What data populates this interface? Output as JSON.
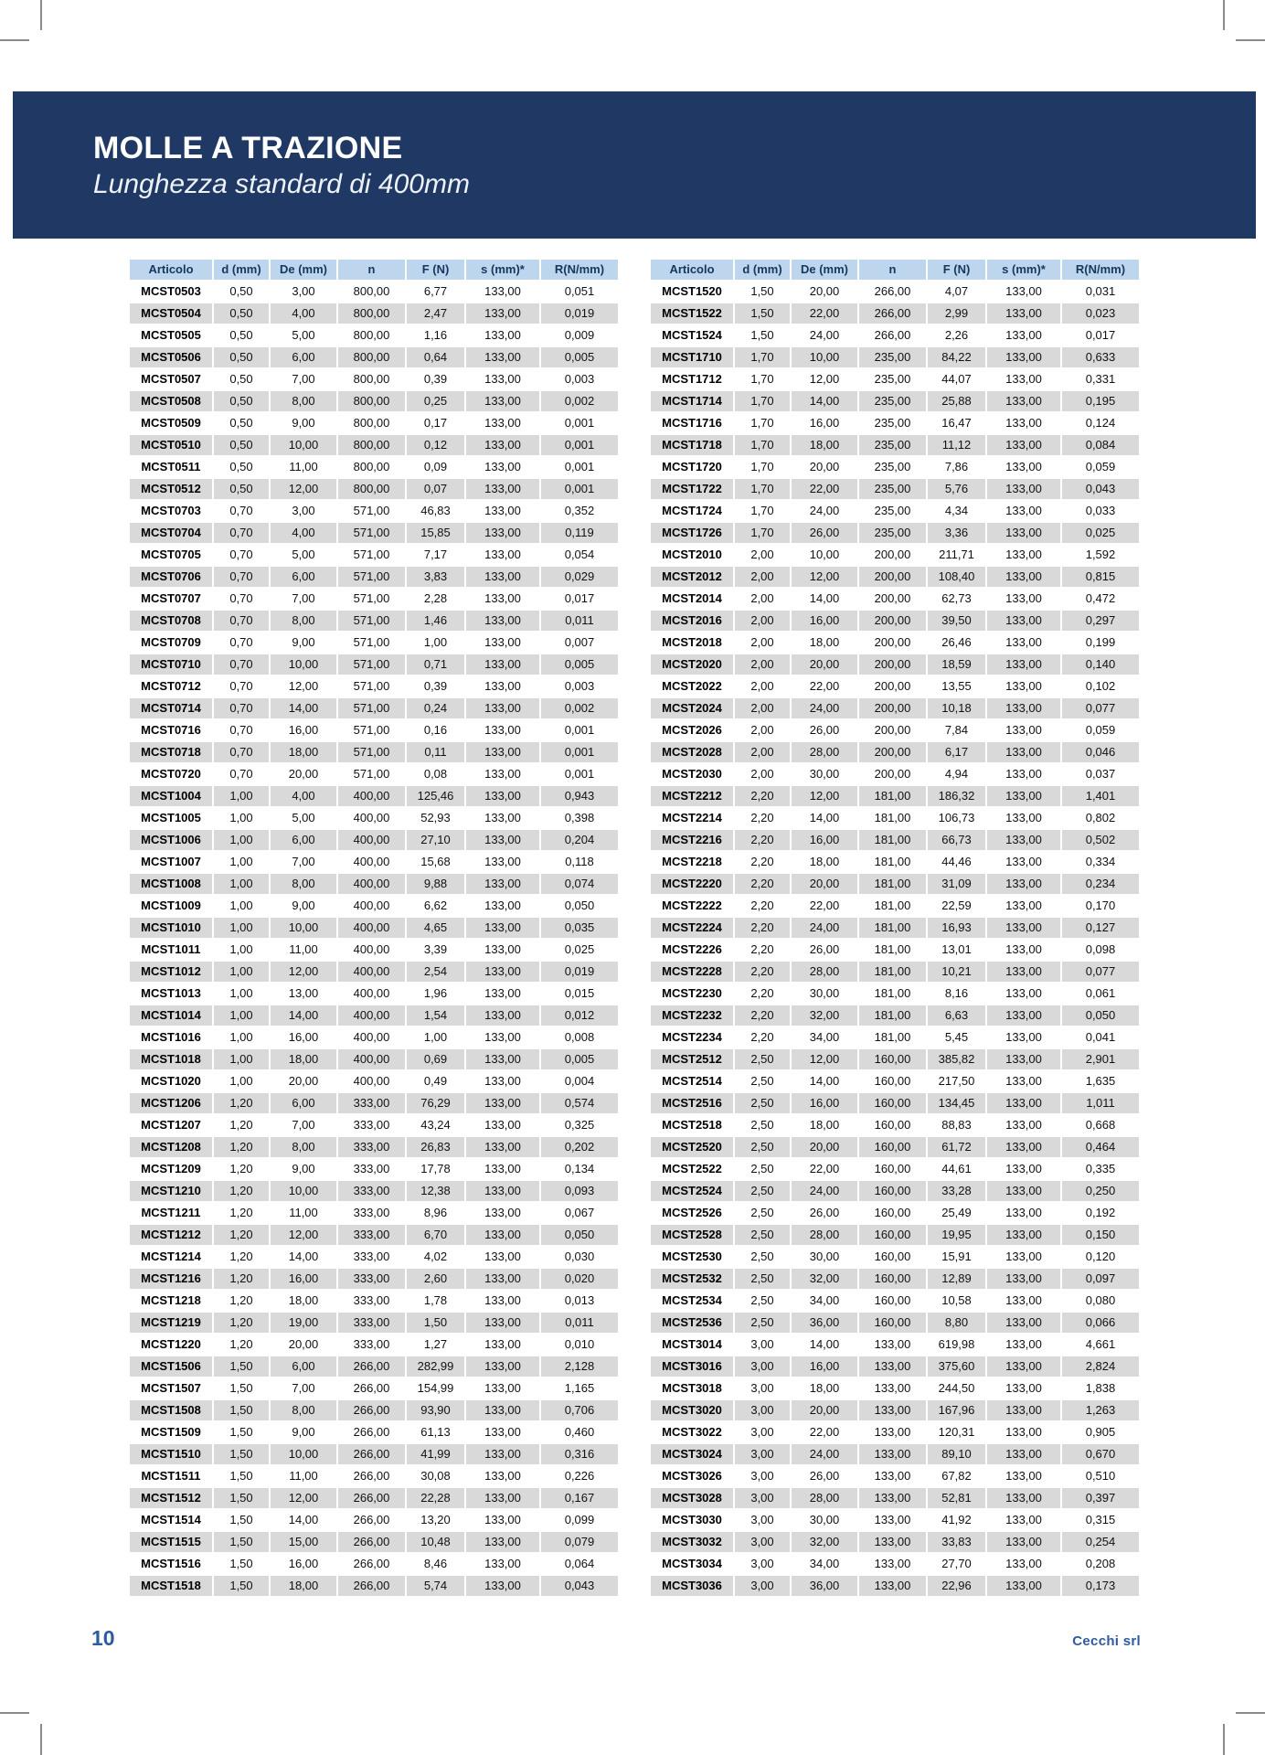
{
  "page": {
    "title": "MOLLE A TRAZIONE",
    "subtitle": "Lunghezza standard di 400mm",
    "page_number": "10",
    "company": "Cecchi srl"
  },
  "colors": {
    "banner": "#1F3864",
    "header_row_bg": "#BDD6EE",
    "header_text": "#17365D",
    "row_stripe": "#D9D9D9",
    "footer_text": "#2E5AA0"
  },
  "table": {
    "columns": [
      "Articolo",
      "d (mm)",
      "De (mm)",
      "n",
      "F (N)",
      "s (mm)*",
      "R(N/mm)"
    ],
    "left_rows": [
      [
        "MCST0503",
        "0,50",
        "3,00",
        "800,00",
        "6,77",
        "133,00",
        "0,051"
      ],
      [
        "MCST0504",
        "0,50",
        "4,00",
        "800,00",
        "2,47",
        "133,00",
        "0,019"
      ],
      [
        "MCST0505",
        "0,50",
        "5,00",
        "800,00",
        "1,16",
        "133,00",
        "0,009"
      ],
      [
        "MCST0506",
        "0,50",
        "6,00",
        "800,00",
        "0,64",
        "133,00",
        "0,005"
      ],
      [
        "MCST0507",
        "0,50",
        "7,00",
        "800,00",
        "0,39",
        "133,00",
        "0,003"
      ],
      [
        "MCST0508",
        "0,50",
        "8,00",
        "800,00",
        "0,25",
        "133,00",
        "0,002"
      ],
      [
        "MCST0509",
        "0,50",
        "9,00",
        "800,00",
        "0,17",
        "133,00",
        "0,001"
      ],
      [
        "MCST0510",
        "0,50",
        "10,00",
        "800,00",
        "0,12",
        "133,00",
        "0,001"
      ],
      [
        "MCST0511",
        "0,50",
        "11,00",
        "800,00",
        "0,09",
        "133,00",
        "0,001"
      ],
      [
        "MCST0512",
        "0,50",
        "12,00",
        "800,00",
        "0,07",
        "133,00",
        "0,001"
      ],
      [
        "MCST0703",
        "0,70",
        "3,00",
        "571,00",
        "46,83",
        "133,00",
        "0,352"
      ],
      [
        "MCST0704",
        "0,70",
        "4,00",
        "571,00",
        "15,85",
        "133,00",
        "0,119"
      ],
      [
        "MCST0705",
        "0,70",
        "5,00",
        "571,00",
        "7,17",
        "133,00",
        "0,054"
      ],
      [
        "MCST0706",
        "0,70",
        "6,00",
        "571,00",
        "3,83",
        "133,00",
        "0,029"
      ],
      [
        "MCST0707",
        "0,70",
        "7,00",
        "571,00",
        "2,28",
        "133,00",
        "0,017"
      ],
      [
        "MCST0708",
        "0,70",
        "8,00",
        "571,00",
        "1,46",
        "133,00",
        "0,011"
      ],
      [
        "MCST0709",
        "0,70",
        "9,00",
        "571,00",
        "1,00",
        "133,00",
        "0,007"
      ],
      [
        "MCST0710",
        "0,70",
        "10,00",
        "571,00",
        "0,71",
        "133,00",
        "0,005"
      ],
      [
        "MCST0712",
        "0,70",
        "12,00",
        "571,00",
        "0,39",
        "133,00",
        "0,003"
      ],
      [
        "MCST0714",
        "0,70",
        "14,00",
        "571,00",
        "0,24",
        "133,00",
        "0,002"
      ],
      [
        "MCST0716",
        "0,70",
        "16,00",
        "571,00",
        "0,16",
        "133,00",
        "0,001"
      ],
      [
        "MCST0718",
        "0,70",
        "18,00",
        "571,00",
        "0,11",
        "133,00",
        "0,001"
      ],
      [
        "MCST0720",
        "0,70",
        "20,00",
        "571,00",
        "0,08",
        "133,00",
        "0,001"
      ],
      [
        "MCST1004",
        "1,00",
        "4,00",
        "400,00",
        "125,46",
        "133,00",
        "0,943"
      ],
      [
        "MCST1005",
        "1,00",
        "5,00",
        "400,00",
        "52,93",
        "133,00",
        "0,398"
      ],
      [
        "MCST1006",
        "1,00",
        "6,00",
        "400,00",
        "27,10",
        "133,00",
        "0,204"
      ],
      [
        "MCST1007",
        "1,00",
        "7,00",
        "400,00",
        "15,68",
        "133,00",
        "0,118"
      ],
      [
        "MCST1008",
        "1,00",
        "8,00",
        "400,00",
        "9,88",
        "133,00",
        "0,074"
      ],
      [
        "MCST1009",
        "1,00",
        "9,00",
        "400,00",
        "6,62",
        "133,00",
        "0,050"
      ],
      [
        "MCST1010",
        "1,00",
        "10,00",
        "400,00",
        "4,65",
        "133,00",
        "0,035"
      ],
      [
        "MCST1011",
        "1,00",
        "11,00",
        "400,00",
        "3,39",
        "133,00",
        "0,025"
      ],
      [
        "MCST1012",
        "1,00",
        "12,00",
        "400,00",
        "2,54",
        "133,00",
        "0,019"
      ],
      [
        "MCST1013",
        "1,00",
        "13,00",
        "400,00",
        "1,96",
        "133,00",
        "0,015"
      ],
      [
        "MCST1014",
        "1,00",
        "14,00",
        "400,00",
        "1,54",
        "133,00",
        "0,012"
      ],
      [
        "MCST1016",
        "1,00",
        "16,00",
        "400,00",
        "1,00",
        "133,00",
        "0,008"
      ],
      [
        "MCST1018",
        "1,00",
        "18,00",
        "400,00",
        "0,69",
        "133,00",
        "0,005"
      ],
      [
        "MCST1020",
        "1,00",
        "20,00",
        "400,00",
        "0,49",
        "133,00",
        "0,004"
      ],
      [
        "MCST1206",
        "1,20",
        "6,00",
        "333,00",
        "76,29",
        "133,00",
        "0,574"
      ],
      [
        "MCST1207",
        "1,20",
        "7,00",
        "333,00",
        "43,24",
        "133,00",
        "0,325"
      ],
      [
        "MCST1208",
        "1,20",
        "8,00",
        "333,00",
        "26,83",
        "133,00",
        "0,202"
      ],
      [
        "MCST1209",
        "1,20",
        "9,00",
        "333,00",
        "17,78",
        "133,00",
        "0,134"
      ],
      [
        "MCST1210",
        "1,20",
        "10,00",
        "333,00",
        "12,38",
        "133,00",
        "0,093"
      ],
      [
        "MCST1211",
        "1,20",
        "11,00",
        "333,00",
        "8,96",
        "133,00",
        "0,067"
      ],
      [
        "MCST1212",
        "1,20",
        "12,00",
        "333,00",
        "6,70",
        "133,00",
        "0,050"
      ],
      [
        "MCST1214",
        "1,20",
        "14,00",
        "333,00",
        "4,02",
        "133,00",
        "0,030"
      ],
      [
        "MCST1216",
        "1,20",
        "16,00",
        "333,00",
        "2,60",
        "133,00",
        "0,020"
      ],
      [
        "MCST1218",
        "1,20",
        "18,00",
        "333,00",
        "1,78",
        "133,00",
        "0,013"
      ],
      [
        "MCST1219",
        "1,20",
        "19,00",
        "333,00",
        "1,50",
        "133,00",
        "0,011"
      ],
      [
        "MCST1220",
        "1,20",
        "20,00",
        "333,00",
        "1,27",
        "133,00",
        "0,010"
      ],
      [
        "MCST1506",
        "1,50",
        "6,00",
        "266,00",
        "282,99",
        "133,00",
        "2,128"
      ],
      [
        "MCST1507",
        "1,50",
        "7,00",
        "266,00",
        "154,99",
        "133,00",
        "1,165"
      ],
      [
        "MCST1508",
        "1,50",
        "8,00",
        "266,00",
        "93,90",
        "133,00",
        "0,706"
      ],
      [
        "MCST1509",
        "1,50",
        "9,00",
        "266,00",
        "61,13",
        "133,00",
        "0,460"
      ],
      [
        "MCST1510",
        "1,50",
        "10,00",
        "266,00",
        "41,99",
        "133,00",
        "0,316"
      ],
      [
        "MCST1511",
        "1,50",
        "11,00",
        "266,00",
        "30,08",
        "133,00",
        "0,226"
      ],
      [
        "MCST1512",
        "1,50",
        "12,00",
        "266,00",
        "22,28",
        "133,00",
        "0,167"
      ],
      [
        "MCST1514",
        "1,50",
        "14,00",
        "266,00",
        "13,20",
        "133,00",
        "0,099"
      ],
      [
        "MCST1515",
        "1,50",
        "15,00",
        "266,00",
        "10,48",
        "133,00",
        "0,079"
      ],
      [
        "MCST1516",
        "1,50",
        "16,00",
        "266,00",
        "8,46",
        "133,00",
        "0,064"
      ],
      [
        "MCST1518",
        "1,50",
        "18,00",
        "266,00",
        "5,74",
        "133,00",
        "0,043"
      ]
    ],
    "right_rows": [
      [
        "MCST1520",
        "1,50",
        "20,00",
        "266,00",
        "4,07",
        "133,00",
        "0,031"
      ],
      [
        "MCST1522",
        "1,50",
        "22,00",
        "266,00",
        "2,99",
        "133,00",
        "0,023"
      ],
      [
        "MCST1524",
        "1,50",
        "24,00",
        "266,00",
        "2,26",
        "133,00",
        "0,017"
      ],
      [
        "MCST1710",
        "1,70",
        "10,00",
        "235,00",
        "84,22",
        "133,00",
        "0,633"
      ],
      [
        "MCST1712",
        "1,70",
        "12,00",
        "235,00",
        "44,07",
        "133,00",
        "0,331"
      ],
      [
        "MCST1714",
        "1,70",
        "14,00",
        "235,00",
        "25,88",
        "133,00",
        "0,195"
      ],
      [
        "MCST1716",
        "1,70",
        "16,00",
        "235,00",
        "16,47",
        "133,00",
        "0,124"
      ],
      [
        "MCST1718",
        "1,70",
        "18,00",
        "235,00",
        "11,12",
        "133,00",
        "0,084"
      ],
      [
        "MCST1720",
        "1,70",
        "20,00",
        "235,00",
        "7,86",
        "133,00",
        "0,059"
      ],
      [
        "MCST1722",
        "1,70",
        "22,00",
        "235,00",
        "5,76",
        "133,00",
        "0,043"
      ],
      [
        "MCST1724",
        "1,70",
        "24,00",
        "235,00",
        "4,34",
        "133,00",
        "0,033"
      ],
      [
        "MCST1726",
        "1,70",
        "26,00",
        "235,00",
        "3,36",
        "133,00",
        "0,025"
      ],
      [
        "MCST2010",
        "2,00",
        "10,00",
        "200,00",
        "211,71",
        "133,00",
        "1,592"
      ],
      [
        "MCST2012",
        "2,00",
        "12,00",
        "200,00",
        "108,40",
        "133,00",
        "0,815"
      ],
      [
        "MCST2014",
        "2,00",
        "14,00",
        "200,00",
        "62,73",
        "133,00",
        "0,472"
      ],
      [
        "MCST2016",
        "2,00",
        "16,00",
        "200,00",
        "39,50",
        "133,00",
        "0,297"
      ],
      [
        "MCST2018",
        "2,00",
        "18,00",
        "200,00",
        "26,46",
        "133,00",
        "0,199"
      ],
      [
        "MCST2020",
        "2,00",
        "20,00",
        "200,00",
        "18,59",
        "133,00",
        "0,140"
      ],
      [
        "MCST2022",
        "2,00",
        "22,00",
        "200,00",
        "13,55",
        "133,00",
        "0,102"
      ],
      [
        "MCST2024",
        "2,00",
        "24,00",
        "200,00",
        "10,18",
        "133,00",
        "0,077"
      ],
      [
        "MCST2026",
        "2,00",
        "26,00",
        "200,00",
        "7,84",
        "133,00",
        "0,059"
      ],
      [
        "MCST2028",
        "2,00",
        "28,00",
        "200,00",
        "6,17",
        "133,00",
        "0,046"
      ],
      [
        "MCST2030",
        "2,00",
        "30,00",
        "200,00",
        "4,94",
        "133,00",
        "0,037"
      ],
      [
        "MCST2212",
        "2,20",
        "12,00",
        "181,00",
        "186,32",
        "133,00",
        "1,401"
      ],
      [
        "MCST2214",
        "2,20",
        "14,00",
        "181,00",
        "106,73",
        "133,00",
        "0,802"
      ],
      [
        "MCST2216",
        "2,20",
        "16,00",
        "181,00",
        "66,73",
        "133,00",
        "0,502"
      ],
      [
        "MCST2218",
        "2,20",
        "18,00",
        "181,00",
        "44,46",
        "133,00",
        "0,334"
      ],
      [
        "MCST2220",
        "2,20",
        "20,00",
        "181,00",
        "31,09",
        "133,00",
        "0,234"
      ],
      [
        "MCST2222",
        "2,20",
        "22,00",
        "181,00",
        "22,59",
        "133,00",
        "0,170"
      ],
      [
        "MCST2224",
        "2,20",
        "24,00",
        "181,00",
        "16,93",
        "133,00",
        "0,127"
      ],
      [
        "MCST2226",
        "2,20",
        "26,00",
        "181,00",
        "13,01",
        "133,00",
        "0,098"
      ],
      [
        "MCST2228",
        "2,20",
        "28,00",
        "181,00",
        "10,21",
        "133,00",
        "0,077"
      ],
      [
        "MCST2230",
        "2,20",
        "30,00",
        "181,00",
        "8,16",
        "133,00",
        "0,061"
      ],
      [
        "MCST2232",
        "2,20",
        "32,00",
        "181,00",
        "6,63",
        "133,00",
        "0,050"
      ],
      [
        "MCST2234",
        "2,20",
        "34,00",
        "181,00",
        "5,45",
        "133,00",
        "0,041"
      ],
      [
        "MCST2512",
        "2,50",
        "12,00",
        "160,00",
        "385,82",
        "133,00",
        "2,901"
      ],
      [
        "MCST2514",
        "2,50",
        "14,00",
        "160,00",
        "217,50",
        "133,00",
        "1,635"
      ],
      [
        "MCST2516",
        "2,50",
        "16,00",
        "160,00",
        "134,45",
        "133,00",
        "1,011"
      ],
      [
        "MCST2518",
        "2,50",
        "18,00",
        "160,00",
        "88,83",
        "133,00",
        "0,668"
      ],
      [
        "MCST2520",
        "2,50",
        "20,00",
        "160,00",
        "61,72",
        "133,00",
        "0,464"
      ],
      [
        "MCST2522",
        "2,50",
        "22,00",
        "160,00",
        "44,61",
        "133,00",
        "0,335"
      ],
      [
        "MCST2524",
        "2,50",
        "24,00",
        "160,00",
        "33,28",
        "133,00",
        "0,250"
      ],
      [
        "MCST2526",
        "2,50",
        "26,00",
        "160,00",
        "25,49",
        "133,00",
        "0,192"
      ],
      [
        "MCST2528",
        "2,50",
        "28,00",
        "160,00",
        "19,95",
        "133,00",
        "0,150"
      ],
      [
        "MCST2530",
        "2,50",
        "30,00",
        "160,00",
        "15,91",
        "133,00",
        "0,120"
      ],
      [
        "MCST2532",
        "2,50",
        "32,00",
        "160,00",
        "12,89",
        "133,00",
        "0,097"
      ],
      [
        "MCST2534",
        "2,50",
        "34,00",
        "160,00",
        "10,58",
        "133,00",
        "0,080"
      ],
      [
        "MCST2536",
        "2,50",
        "36,00",
        "160,00",
        "8,80",
        "133,00",
        "0,066"
      ],
      [
        "MCST3014",
        "3,00",
        "14,00",
        "133,00",
        "619,98",
        "133,00",
        "4,661"
      ],
      [
        "MCST3016",
        "3,00",
        "16,00",
        "133,00",
        "375,60",
        "133,00",
        "2,824"
      ],
      [
        "MCST3018",
        "3,00",
        "18,00",
        "133,00",
        "244,50",
        "133,00",
        "1,838"
      ],
      [
        "MCST3020",
        "3,00",
        "20,00",
        "133,00",
        "167,96",
        "133,00",
        "1,263"
      ],
      [
        "MCST3022",
        "3,00",
        "22,00",
        "133,00",
        "120,31",
        "133,00",
        "0,905"
      ],
      [
        "MCST3024",
        "3,00",
        "24,00",
        "133,00",
        "89,10",
        "133,00",
        "0,670"
      ],
      [
        "MCST3026",
        "3,00",
        "26,00",
        "133,00",
        "67,82",
        "133,00",
        "0,510"
      ],
      [
        "MCST3028",
        "3,00",
        "28,00",
        "133,00",
        "52,81",
        "133,00",
        "0,397"
      ],
      [
        "MCST3030",
        "3,00",
        "30,00",
        "133,00",
        "41,92",
        "133,00",
        "0,315"
      ],
      [
        "MCST3032",
        "3,00",
        "32,00",
        "133,00",
        "33,83",
        "133,00",
        "0,254"
      ],
      [
        "MCST3034",
        "3,00",
        "34,00",
        "133,00",
        "27,70",
        "133,00",
        "0,208"
      ],
      [
        "MCST3036",
        "3,00",
        "36,00",
        "133,00",
        "22,96",
        "133,00",
        "0,173"
      ]
    ]
  }
}
